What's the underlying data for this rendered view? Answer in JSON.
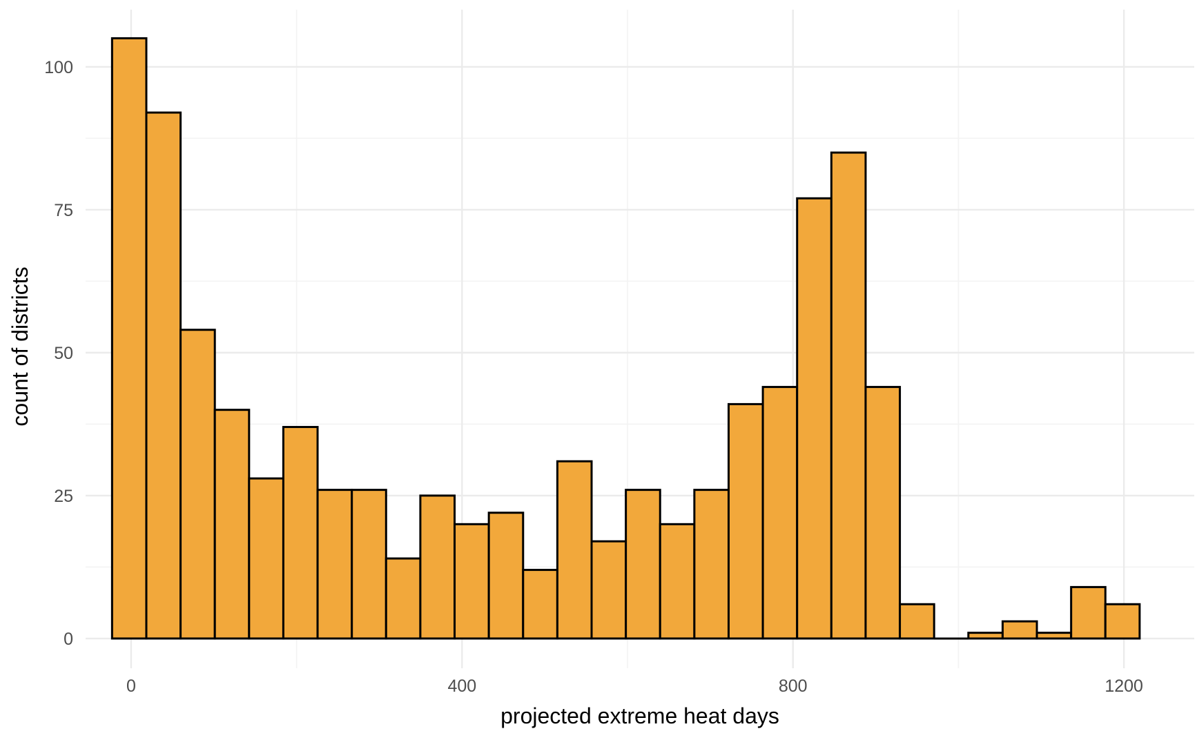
{
  "chart_data": {
    "type": "bar",
    "title": "",
    "xlabel": "projected extreme heat days",
    "ylabel": "count of districts",
    "xlim": [
      -55,
      1285
    ],
    "ylim": [
      -5.2,
      110
    ],
    "x_ticks": [
      0,
      400,
      800,
      1200
    ],
    "x_tick_labels": [
      "0",
      "400",
      "800",
      "1200"
    ],
    "x_minor_ticks": [
      200,
      600,
      1000
    ],
    "y_ticks": [
      0,
      25,
      50,
      75,
      100
    ],
    "y_tick_labels": [
      "0",
      "25",
      "50",
      "75",
      "100"
    ],
    "y_minor_ticks": [
      12.5,
      37.5,
      62.5,
      87.5
    ],
    "grid": true,
    "fill_color": "#F2A83B",
    "edge_color": "#000000",
    "bin_width": 41.4,
    "bins": [
      {
        "x0": -23.0,
        "x1": 18.4,
        "count": 105
      },
      {
        "x0": 18.4,
        "x1": 59.8,
        "count": 92
      },
      {
        "x0": 59.8,
        "x1": 101.2,
        "count": 54
      },
      {
        "x0": 101.2,
        "x1": 142.6,
        "count": 40
      },
      {
        "x0": 142.6,
        "x1": 184.0,
        "count": 28
      },
      {
        "x0": 184.0,
        "x1": 225.4,
        "count": 37
      },
      {
        "x0": 225.4,
        "x1": 266.8,
        "count": 26
      },
      {
        "x0": 266.8,
        "x1": 308.2,
        "count": 26
      },
      {
        "x0": 308.2,
        "x1": 349.6,
        "count": 14
      },
      {
        "x0": 349.6,
        "x1": 391.0,
        "count": 25
      },
      {
        "x0": 391.0,
        "x1": 432.4,
        "count": 20
      },
      {
        "x0": 432.4,
        "x1": 473.8,
        "count": 22
      },
      {
        "x0": 473.8,
        "x1": 515.2,
        "count": 12
      },
      {
        "x0": 515.2,
        "x1": 556.6,
        "count": 31
      },
      {
        "x0": 556.6,
        "x1": 598.0,
        "count": 17
      },
      {
        "x0": 598.0,
        "x1": 639.4,
        "count": 26
      },
      {
        "x0": 639.4,
        "x1": 680.8,
        "count": 20
      },
      {
        "x0": 680.8,
        "x1": 722.2,
        "count": 26
      },
      {
        "x0": 722.2,
        "x1": 763.6,
        "count": 41
      },
      {
        "x0": 763.6,
        "x1": 805.0,
        "count": 44
      },
      {
        "x0": 805.0,
        "x1": 846.4,
        "count": 77
      },
      {
        "x0": 846.4,
        "x1": 887.8,
        "count": 85
      },
      {
        "x0": 887.8,
        "x1": 929.2,
        "count": 44
      },
      {
        "x0": 929.2,
        "x1": 970.6,
        "count": 6
      },
      {
        "x0": 970.6,
        "x1": 1012.0,
        "count": 0
      },
      {
        "x0": 1012.0,
        "x1": 1053.4,
        "count": 1
      },
      {
        "x0": 1053.4,
        "x1": 1094.8,
        "count": 3
      },
      {
        "x0": 1094.8,
        "x1": 1136.2,
        "count": 1
      },
      {
        "x0": 1136.2,
        "x1": 1177.6,
        "count": 9
      },
      {
        "x0": 1177.6,
        "x1": 1219.0,
        "count": 6
      }
    ]
  }
}
